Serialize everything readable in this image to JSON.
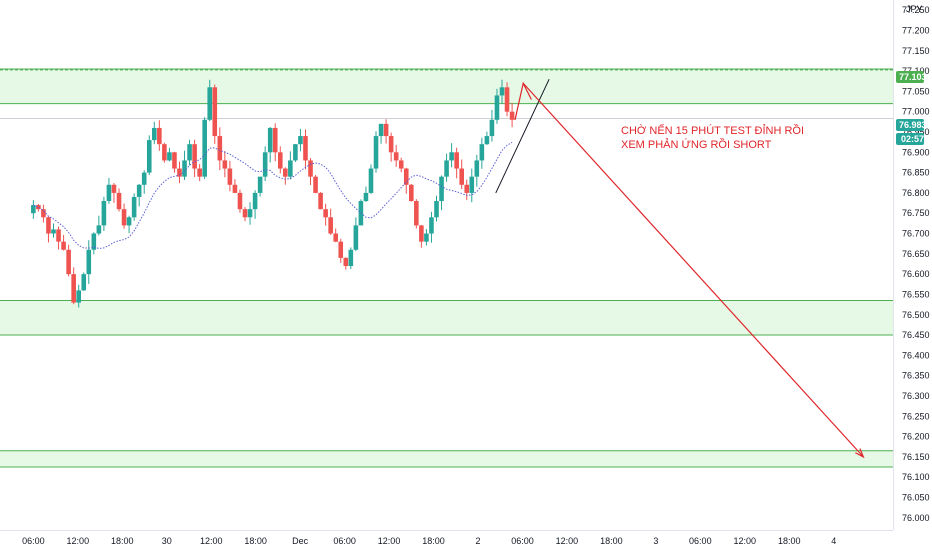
{
  "chart_data": {
    "type": "candlestick",
    "currency_label": "JPY",
    "y_ticks": [
      "77.250",
      "77.200",
      "77.150",
      "77.100",
      "77.050",
      "77.000",
      "76.950",
      "76.900",
      "76.850",
      "76.800",
      "76.750",
      "76.700",
      "76.650",
      "76.600",
      "76.550",
      "76.500",
      "76.450",
      "76.400",
      "76.350",
      "76.300",
      "76.250",
      "76.200",
      "76.150",
      "76.100",
      "76.050",
      "76.000"
    ],
    "y_tick_values": [
      77.25,
      77.2,
      77.15,
      77.1,
      77.05,
      77.0,
      76.95,
      76.9,
      76.85,
      76.8,
      76.75,
      76.7,
      76.65,
      76.6,
      76.55,
      76.5,
      76.45,
      76.4,
      76.35,
      76.3,
      76.25,
      76.2,
      76.15,
      76.1,
      76.05,
      76.0
    ],
    "ylim": [
      75.97,
      77.275
    ],
    "x_ticks": [
      {
        "label": "06:00",
        "t": 0
      },
      {
        "label": "12:00",
        "t": 6
      },
      {
        "label": "18:00",
        "t": 12
      },
      {
        "label": "30",
        "t": 18
      },
      {
        "label": "12:00",
        "t": 24
      },
      {
        "label": "18:00",
        "t": 30
      },
      {
        "label": "Dec",
        "t": 36
      },
      {
        "label": "06:00",
        "t": 42
      },
      {
        "label": "12:00",
        "t": 48
      },
      {
        "label": "18:00",
        "t": 54
      },
      {
        "label": "2",
        "t": 60
      },
      {
        "label": "06:00",
        "t": 66
      },
      {
        "label": "12:00",
        "t": 72
      },
      {
        "label": "18:00",
        "t": 78
      },
      {
        "label": "3",
        "t": 84
      },
      {
        "label": "06:00",
        "t": 90
      },
      {
        "label": "12:00",
        "t": 96
      },
      {
        "label": "18:00",
        "t": 102
      },
      {
        "label": "4",
        "t": 108
      }
    ],
    "xlim": [
      -4.5,
      116
    ],
    "zones": [
      {
        "low": 77.02,
        "high": 77.105
      },
      {
        "low": 76.45,
        "high": 76.535
      },
      {
        "low": 76.125,
        "high": 76.165
      }
    ],
    "current_price_label": "76.983",
    "current_price": 76.983,
    "countdown_label": "02:57",
    "top_level_label": "77.103",
    "top_level": 77.103,
    "annotation_lines": [
      "CHỜ NẾN 15 PHÚT TEST ĐỈNH RỒI",
      "XEM PHẢN ỨNG RỒI SHORT"
    ],
    "arrow_target": {
      "t": 112,
      "price": 76.15
    },
    "colors": {
      "up": "#26a69a",
      "down": "#ef5350",
      "ma": "#5b5fd6",
      "zone_fill": "#e6f8e6",
      "zone_line": "#4caf50",
      "annotation": "#e0262b",
      "price_tag": "#26a69a",
      "top_tag": "#4caf50"
    },
    "candles_close": [
      76.77,
      76.76,
      76.74,
      76.7,
      76.71,
      76.68,
      76.66,
      76.6,
      76.53,
      76.56,
      76.6,
      76.66,
      76.7,
      76.72,
      76.78,
      76.82,
      76.8,
      76.76,
      76.72,
      76.74,
      76.79,
      76.82,
      76.85,
      76.93,
      76.96,
      76.92,
      76.88,
      76.9,
      76.86,
      76.84,
      76.88,
      76.92,
      76.86,
      76.84,
      76.98,
      77.06,
      76.94,
      76.88,
      76.86,
      76.82,
      76.8,
      76.76,
      76.74,
      76.76,
      76.8,
      76.84,
      76.9,
      76.96,
      76.9,
      76.86,
      76.84,
      76.88,
      76.92,
      76.94,
      76.88,
      76.84,
      76.8,
      76.76,
      76.74,
      76.7,
      76.68,
      76.64,
      76.62,
      76.66,
      76.72,
      76.78,
      76.8,
      76.86,
      76.94,
      76.97,
      76.94,
      76.9,
      76.88,
      76.86,
      76.82,
      76.78,
      76.72,
      76.68,
      76.7,
      76.74,
      76.78,
      76.84,
      76.88,
      76.9,
      76.86,
      76.82,
      76.8,
      76.84,
      76.88,
      76.92,
      76.94,
      76.98,
      77.04,
      77.06,
      77.0,
      76.98
    ]
  }
}
